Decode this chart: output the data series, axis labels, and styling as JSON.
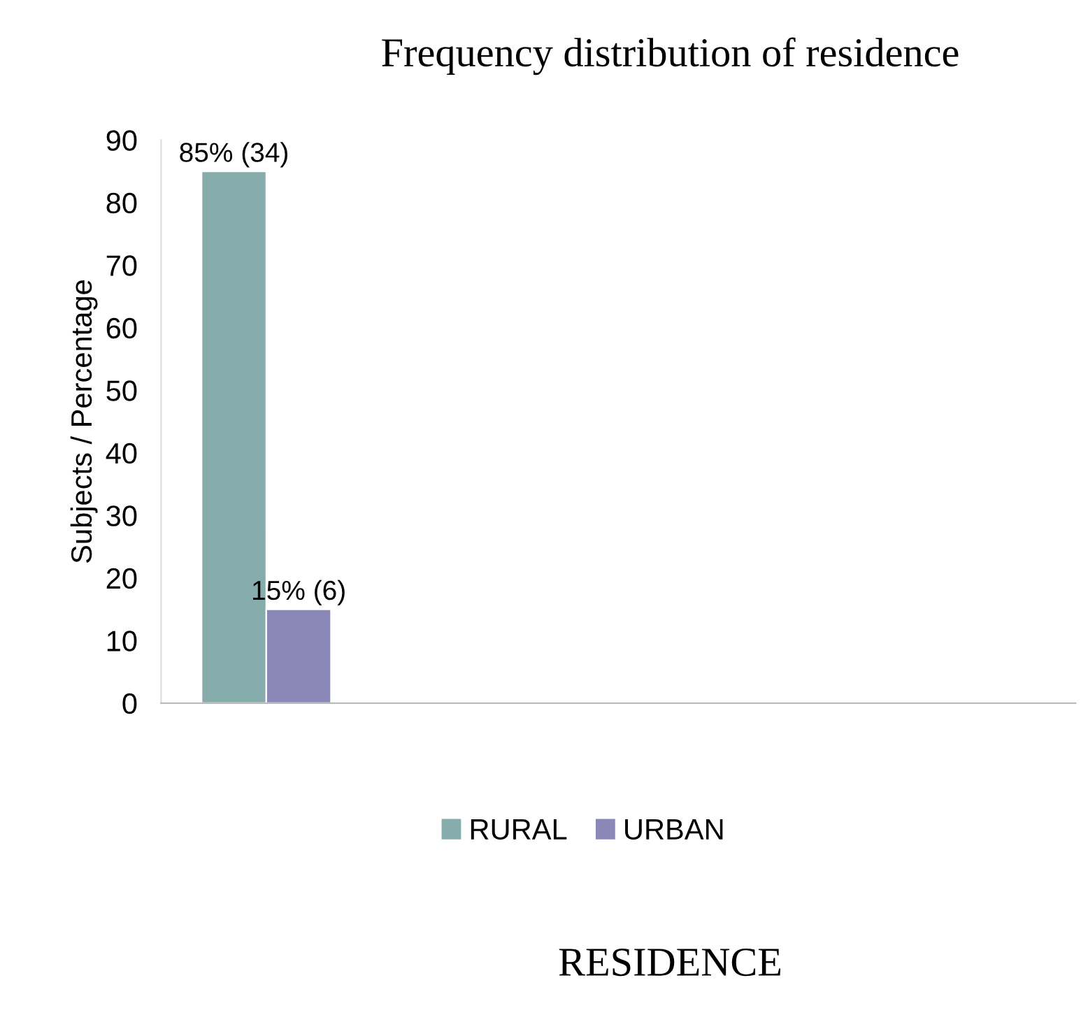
{
  "chart_data": {
    "type": "bar",
    "title": "Frequency distribution of residence",
    "annotations": [
      "RESIDENCE"
    ],
    "ylabel": "Subjects / Percentage",
    "categories": [
      null
    ],
    "series": [
      {
        "name": "RURAL",
        "color": "#86acac",
        "values": [
          85
        ],
        "value_labels": [
          "85% (34)"
        ]
      },
      {
        "name": "URBAN",
        "color": "#8b88b8",
        "values": [
          15
        ],
        "value_labels": [
          "15% (6)"
        ]
      }
    ],
    "ylim": [
      0,
      90
    ],
    "yticks": [
      0,
      10,
      20,
      30,
      40,
      50,
      60,
      70,
      80,
      90
    ],
    "grid": false,
    "legend": "bottom"
  }
}
